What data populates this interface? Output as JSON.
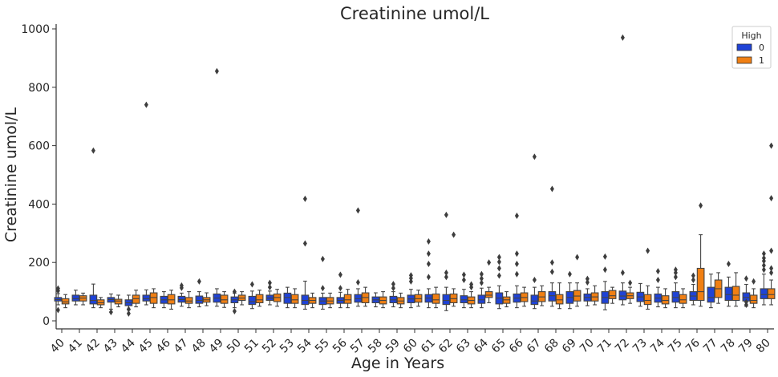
{
  "chart_data": {
    "type": "box",
    "title": "Creatinine umol/L",
    "xlabel": "Age in Years",
    "ylabel": "Creatinine umol/L",
    "ylim": [
      0,
      1000
    ],
    "yticks": [
      0,
      200,
      400,
      600,
      800,
      1000
    ],
    "grid": false,
    "legend": {
      "title": "High",
      "placement": "top-right"
    },
    "categories": [
      "40",
      "41",
      "42",
      "43",
      "44",
      "45",
      "46",
      "47",
      "48",
      "49",
      "50",
      "51",
      "52",
      "53",
      "54",
      "55",
      "56",
      "57",
      "58",
      "59",
      "60",
      "61",
      "62",
      "63",
      "64",
      "65",
      "66",
      "67",
      "68",
      "69",
      "70",
      "71",
      "72",
      "73",
      "74",
      "75",
      "76",
      "77",
      "78",
      "79",
      "80"
    ],
    "series": [
      {
        "name": "0",
        "color": "#1f43d6",
        "boxes": [
          {
            "q1": 68,
            "med": 73,
            "q3": 80,
            "wl": 55,
            "wh": 93,
            "fliers": [
              37,
              103,
              111
            ]
          },
          {
            "q1": 68,
            "med": 76,
            "q3": 88,
            "wl": 55,
            "wh": 105,
            "fliers": []
          },
          {
            "q1": 58,
            "med": 70,
            "q3": 88,
            "wl": 45,
            "wh": 126,
            "fliers": [
              583
            ]
          },
          {
            "q1": 64,
            "med": 73,
            "q3": 80,
            "wl": 40,
            "wh": 92,
            "fliers": [
              30
            ]
          },
          {
            "q1": 52,
            "med": 62,
            "q3": 72,
            "wl": 38,
            "wh": 88,
            "fliers": [
              25,
              40
            ]
          },
          {
            "q1": 68,
            "med": 76,
            "q3": 88,
            "wl": 55,
            "wh": 106,
            "fliers": [
              740
            ]
          },
          {
            "q1": 60,
            "med": 72,
            "q3": 84,
            "wl": 45,
            "wh": 100,
            "fliers": []
          },
          {
            "q1": 64,
            "med": 73,
            "q3": 84,
            "wl": 50,
            "wh": 95,
            "fliers": [
              113,
              121
            ]
          },
          {
            "q1": 60,
            "med": 70,
            "q3": 85,
            "wl": 48,
            "wh": 100,
            "fliers": [
              135
            ]
          },
          {
            "q1": 64,
            "med": 78,
            "q3": 92,
            "wl": 50,
            "wh": 110,
            "fliers": [
              855
            ]
          },
          {
            "q1": 62,
            "med": 72,
            "q3": 82,
            "wl": 45,
            "wh": 95,
            "fliers": [
              33,
              100
            ]
          },
          {
            "q1": 56,
            "med": 66,
            "q3": 84,
            "wl": 42,
            "wh": 102,
            "fliers": [
              125
            ]
          },
          {
            "q1": 70,
            "med": 78,
            "q3": 88,
            "wl": 55,
            "wh": 102,
            "fliers": [
              115,
              130
            ]
          },
          {
            "q1": 60,
            "med": 80,
            "q3": 95,
            "wl": 45,
            "wh": 115,
            "fliers": []
          },
          {
            "q1": 56,
            "med": 70,
            "q3": 88,
            "wl": 40,
            "wh": 136,
            "fliers": [
              265,
              418
            ]
          },
          {
            "q1": 56,
            "med": 68,
            "q3": 80,
            "wl": 40,
            "wh": 95,
            "fliers": [
              112,
              212
            ]
          },
          {
            "q1": 60,
            "med": 70,
            "q3": 80,
            "wl": 45,
            "wh": 98,
            "fliers": [
              112,
              158
            ]
          },
          {
            "q1": 64,
            "med": 76,
            "q3": 90,
            "wl": 50,
            "wh": 110,
            "fliers": [
              132,
              378
            ]
          },
          {
            "q1": 62,
            "med": 72,
            "q3": 82,
            "wl": 48,
            "wh": 96,
            "fliers": []
          },
          {
            "q1": 62,
            "med": 72,
            "q3": 84,
            "wl": 48,
            "wh": 100,
            "fliers": [
              112,
              126
            ]
          },
          {
            "q1": 62,
            "med": 75,
            "q3": 88,
            "wl": 45,
            "wh": 108,
            "fliers": [
              135,
              146,
              156
            ]
          },
          {
            "q1": 64,
            "med": 78,
            "q3": 90,
            "wl": 45,
            "wh": 110,
            "fliers": [
              150,
              195,
              230,
              272
            ]
          },
          {
            "q1": 56,
            "med": 70,
            "q3": 90,
            "wl": 35,
            "wh": 115,
            "fliers": [
              150,
              165,
              363
            ]
          },
          {
            "q1": 62,
            "med": 72,
            "q3": 86,
            "wl": 45,
            "wh": 108,
            "fliers": [
              140,
              158
            ]
          },
          {
            "q1": 60,
            "med": 72,
            "q3": 88,
            "wl": 45,
            "wh": 112,
            "fliers": [
              130,
              145,
              160
            ]
          },
          {
            "q1": 58,
            "med": 78,
            "q3": 96,
            "wl": 42,
            "wh": 120,
            "fliers": [
              155,
              180,
              202,
              218
            ]
          },
          {
            "q1": 64,
            "med": 78,
            "q3": 92,
            "wl": 45,
            "wh": 120,
            "fliers": [
              160,
              195,
              230,
              360
            ]
          },
          {
            "q1": 56,
            "med": 68,
            "q3": 88,
            "wl": 42,
            "wh": 115,
            "fliers": [
              140,
              562
            ]
          },
          {
            "q1": 68,
            "med": 86,
            "q3": 100,
            "wl": 50,
            "wh": 130,
            "fliers": [
              168,
              200,
              452
            ]
          },
          {
            "q1": 60,
            "med": 80,
            "q3": 100,
            "wl": 42,
            "wh": 130,
            "fliers": [
              160
            ]
          },
          {
            "q1": 68,
            "med": 80,
            "q3": 92,
            "wl": 52,
            "wh": 110,
            "fliers": [
              132,
              144
            ]
          },
          {
            "q1": 60,
            "med": 80,
            "q3": 100,
            "wl": 38,
            "wh": 135,
            "fliers": [
              175,
              220
            ]
          },
          {
            "q1": 72,
            "med": 85,
            "q3": 102,
            "wl": 55,
            "wh": 130,
            "fliers": [
              165,
              970
            ]
          },
          {
            "q1": 66,
            "med": 82,
            "q3": 98,
            "wl": 50,
            "wh": 128,
            "fliers": []
          },
          {
            "q1": 64,
            "med": 78,
            "q3": 92,
            "wl": 48,
            "wh": 115,
            "fliers": [
              140,
              170
            ]
          },
          {
            "q1": 64,
            "med": 80,
            "q3": 100,
            "wl": 45,
            "wh": 130,
            "fliers": [
              150,
              165,
              175
            ]
          },
          {
            "q1": 70,
            "med": 85,
            "q3": 100,
            "wl": 55,
            "wh": 125,
            "fliers": [
              140,
              155
            ]
          },
          {
            "q1": 64,
            "med": 80,
            "q3": 115,
            "wl": 45,
            "wh": 160,
            "fliers": []
          },
          {
            "q1": 70,
            "med": 90,
            "q3": 115,
            "wl": 50,
            "wh": 150,
            "fliers": [
              195
            ]
          },
          {
            "q1": 68,
            "med": 80,
            "q3": 96,
            "wl": 50,
            "wh": 125,
            "fliers": [
              55,
              65,
              145
            ]
          },
          {
            "q1": 76,
            "med": 90,
            "q3": 110,
            "wl": 55,
            "wh": 160,
            "fliers": [
              175,
              190,
              205,
              215,
              230
            ]
          }
        ]
      },
      {
        "name": "1",
        "color": "#f07f13",
        "boxes": [
          {
            "q1": 58,
            "med": 65,
            "q3": 76,
            "wl": 45,
            "wh": 90,
            "fliers": []
          },
          {
            "q1": 68,
            "med": 78,
            "q3": 86,
            "wl": 55,
            "wh": 95,
            "fliers": []
          },
          {
            "q1": 55,
            "med": 62,
            "q3": 72,
            "wl": 45,
            "wh": 80,
            "fliers": []
          },
          {
            "q1": 58,
            "med": 68,
            "q3": 74,
            "wl": 48,
            "wh": 88,
            "fliers": []
          },
          {
            "q1": 60,
            "med": 76,
            "q3": 88,
            "wl": 48,
            "wh": 105,
            "fliers": []
          },
          {
            "q1": 60,
            "med": 80,
            "q3": 96,
            "wl": 45,
            "wh": 110,
            "fliers": []
          },
          {
            "q1": 58,
            "med": 72,
            "q3": 90,
            "wl": 40,
            "wh": 105,
            "fliers": []
          },
          {
            "q1": 60,
            "med": 68,
            "q3": 80,
            "wl": 45,
            "wh": 100,
            "fliers": []
          },
          {
            "q1": 64,
            "med": 72,
            "q3": 80,
            "wl": 52,
            "wh": 96,
            "fliers": []
          },
          {
            "q1": 60,
            "med": 72,
            "q3": 88,
            "wl": 46,
            "wh": 100,
            "fliers": []
          },
          {
            "q1": 70,
            "med": 78,
            "q3": 88,
            "wl": 55,
            "wh": 100,
            "fliers": []
          },
          {
            "q1": 62,
            "med": 72,
            "q3": 90,
            "wl": 50,
            "wh": 105,
            "fliers": []
          },
          {
            "q1": 66,
            "med": 80,
            "q3": 92,
            "wl": 50,
            "wh": 108,
            "fliers": []
          },
          {
            "q1": 60,
            "med": 72,
            "q3": 90,
            "wl": 45,
            "wh": 110,
            "fliers": []
          },
          {
            "q1": 60,
            "med": 70,
            "q3": 80,
            "wl": 45,
            "wh": 95,
            "fliers": []
          },
          {
            "q1": 58,
            "med": 68,
            "q3": 80,
            "wl": 45,
            "wh": 95,
            "fliers": []
          },
          {
            "q1": 60,
            "med": 72,
            "q3": 90,
            "wl": 45,
            "wh": 108,
            "fliers": []
          },
          {
            "q1": 62,
            "med": 80,
            "q3": 96,
            "wl": 50,
            "wh": 115,
            "fliers": []
          },
          {
            "q1": 58,
            "med": 70,
            "q3": 82,
            "wl": 45,
            "wh": 100,
            "fliers": []
          },
          {
            "q1": 58,
            "med": 68,
            "q3": 80,
            "wl": 45,
            "wh": 95,
            "fliers": []
          },
          {
            "q1": 64,
            "med": 76,
            "q3": 90,
            "wl": 50,
            "wh": 105,
            "fliers": []
          },
          {
            "q1": 60,
            "med": 72,
            "q3": 92,
            "wl": 45,
            "wh": 115,
            "fliers": []
          },
          {
            "q1": 62,
            "med": 76,
            "q3": 92,
            "wl": 50,
            "wh": 110,
            "fliers": [
              295
            ]
          },
          {
            "q1": 58,
            "med": 70,
            "q3": 82,
            "wl": 45,
            "wh": 100,
            "fliers": [
              115,
              125
            ]
          },
          {
            "q1": 80,
            "med": 88,
            "q3": 100,
            "wl": 62,
            "wh": 115,
            "fliers": [
              200
            ]
          },
          {
            "q1": 60,
            "med": 72,
            "q3": 82,
            "wl": 48,
            "wh": 100,
            "fliers": []
          },
          {
            "q1": 66,
            "med": 80,
            "q3": 96,
            "wl": 50,
            "wh": 115,
            "fliers": []
          },
          {
            "q1": 66,
            "med": 82,
            "q3": 100,
            "wl": 52,
            "wh": 120,
            "fliers": []
          },
          {
            "q1": 58,
            "med": 72,
            "q3": 90,
            "wl": 42,
            "wh": 130,
            "fliers": []
          },
          {
            "q1": 68,
            "med": 85,
            "q3": 104,
            "wl": 50,
            "wh": 130,
            "fliers": [
              218
            ]
          },
          {
            "q1": 68,
            "med": 82,
            "q3": 96,
            "wl": 55,
            "wh": 120,
            "fliers": []
          },
          {
            "q1": 76,
            "med": 86,
            "q3": 104,
            "wl": 60,
            "wh": 115,
            "fliers": []
          },
          {
            "q1": 76,
            "med": 86,
            "q3": 96,
            "wl": 60,
            "wh": 115,
            "fliers": [
              130
            ]
          },
          {
            "q1": 56,
            "med": 70,
            "q3": 90,
            "wl": 40,
            "wh": 120,
            "fliers": [
              240
            ]
          },
          {
            "q1": 58,
            "med": 70,
            "q3": 86,
            "wl": 45,
            "wh": 110,
            "fliers": []
          },
          {
            "q1": 60,
            "med": 72,
            "q3": 90,
            "wl": 45,
            "wh": 110,
            "fliers": []
          },
          {
            "q1": 70,
            "med": 100,
            "q3": 180,
            "wl": 50,
            "wh": 295,
            "fliers": [
              395
            ]
          },
          {
            "q1": 80,
            "med": 110,
            "q3": 140,
            "wl": 60,
            "wh": 165,
            "fliers": []
          },
          {
            "q1": 70,
            "med": 88,
            "q3": 118,
            "wl": 50,
            "wh": 165,
            "fliers": []
          },
          {
            "q1": 60,
            "med": 70,
            "q3": 88,
            "wl": 45,
            "wh": 110,
            "fliers": [
              135
            ]
          },
          {
            "q1": 76,
            "med": 90,
            "q3": 110,
            "wl": 55,
            "wh": 140,
            "fliers": [
              165,
              180,
              240,
              420,
              600
            ]
          }
        ]
      }
    ]
  }
}
